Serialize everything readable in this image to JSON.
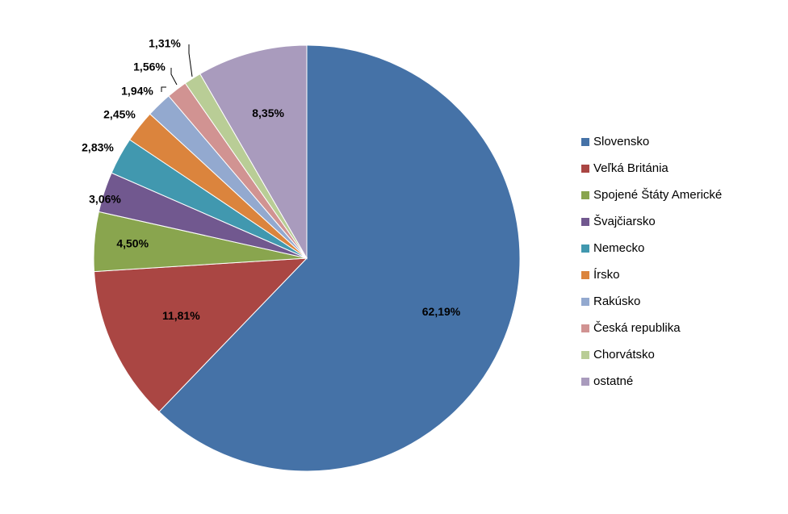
{
  "chart_data": {
    "type": "pie",
    "categories": [
      "Slovensko",
      "Veľká Británia",
      "Spojené Štáty Americké",
      "Švajčiarsko",
      "Nemecko",
      "Írsko",
      "Rakúsko",
      "Česká republika",
      "Chorvátsko",
      "ostatné"
    ],
    "values": [
      62.19,
      11.81,
      4.5,
      3.06,
      2.83,
      2.45,
      1.94,
      1.56,
      1.31,
      8.35
    ],
    "data_labels": [
      "62,19%",
      "11,81%",
      "4,50%",
      "3,06%",
      "2,83%",
      "2,45%",
      "1,94%",
      "1,56%",
      "1,31%",
      "8,35%"
    ],
    "colors": [
      "#4572A7",
      "#AA4643",
      "#89A54E",
      "#71588F",
      "#4198AF",
      "#DB843D",
      "#93A9CF",
      "#D19392",
      "#B9CD96",
      "#A99BBD"
    ],
    "legend_position": "right",
    "title": ""
  }
}
